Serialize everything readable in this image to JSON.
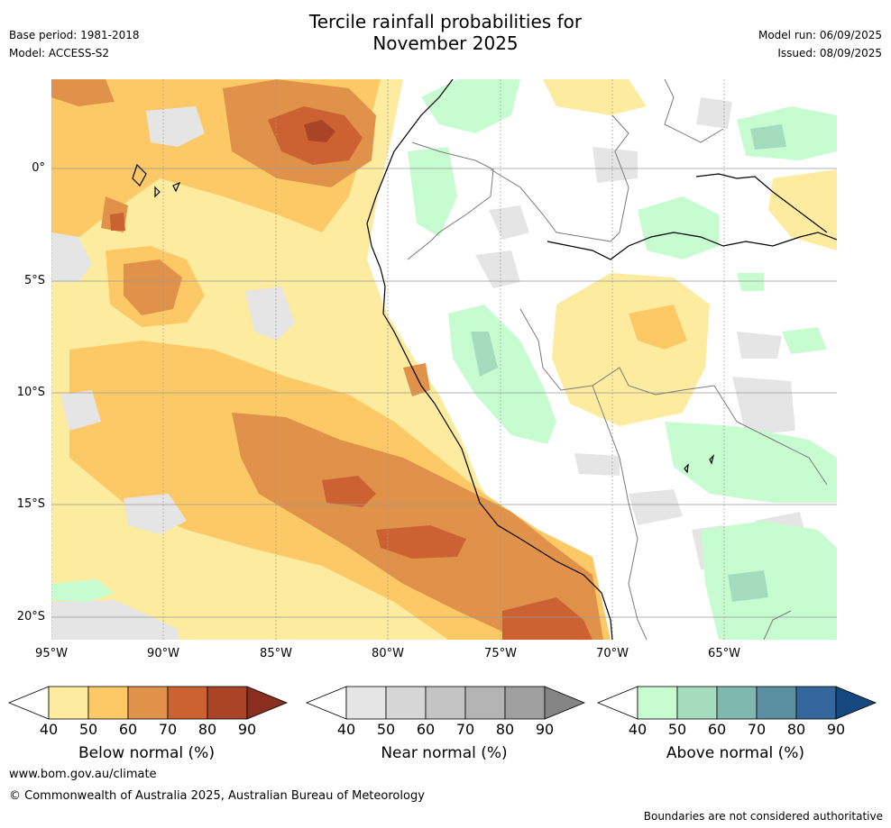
{
  "title_line1": "Tercile rainfall probabilities for",
  "title_line2": "November 2025",
  "meta_left": [
    "Base period: 1981-2018",
    "Model: ACCESS-S2"
  ],
  "meta_right": [
    "Model run: 06/09/2025",
    "Issued: 08/09/2025"
  ],
  "lat_labels": [
    "0°",
    "5°S",
    "10°S",
    "15°S",
    "20°S"
  ],
  "lon_labels": [
    "95°W",
    "90°W",
    "85°W",
    "80°W",
    "75°W",
    "70°W",
    "65°W"
  ],
  "colorbars": [
    {
      "title": "Below normal (%)",
      "ticks": [
        "40",
        "50",
        "60",
        "70",
        "80",
        "90"
      ],
      "colors": [
        "#fdeb9f",
        "#fdc966",
        "#e0924a",
        "#cc6232",
        "#aa4426"
      ],
      "extend_color": "#8a2e1f"
    },
    {
      "title": "Near normal (%)",
      "ticks": [
        "40",
        "50",
        "60",
        "70",
        "80",
        "90"
      ],
      "colors": [
        "#e5e5e5",
        "#d6d6d6",
        "#c4c4c4",
        "#b4b4b4",
        "#9f9f9f"
      ],
      "extend_color": "#858585"
    },
    {
      "title": "Above normal (%)",
      "ticks": [
        "40",
        "50",
        "60",
        "70",
        "80",
        "90"
      ],
      "colors": [
        "#c7fbd0",
        "#a6dcbe",
        "#80b8b0",
        "#5a8ea0",
        "#33679b"
      ],
      "extend_color": "#15487e"
    }
  ],
  "footer_url": "www.bom.gov.au/climate",
  "footer_copyright": "© Commonwealth of Australia 2025, Australian Bureau of Meteorology",
  "disclaimer": "Boundaries are not considered authoritative"
}
